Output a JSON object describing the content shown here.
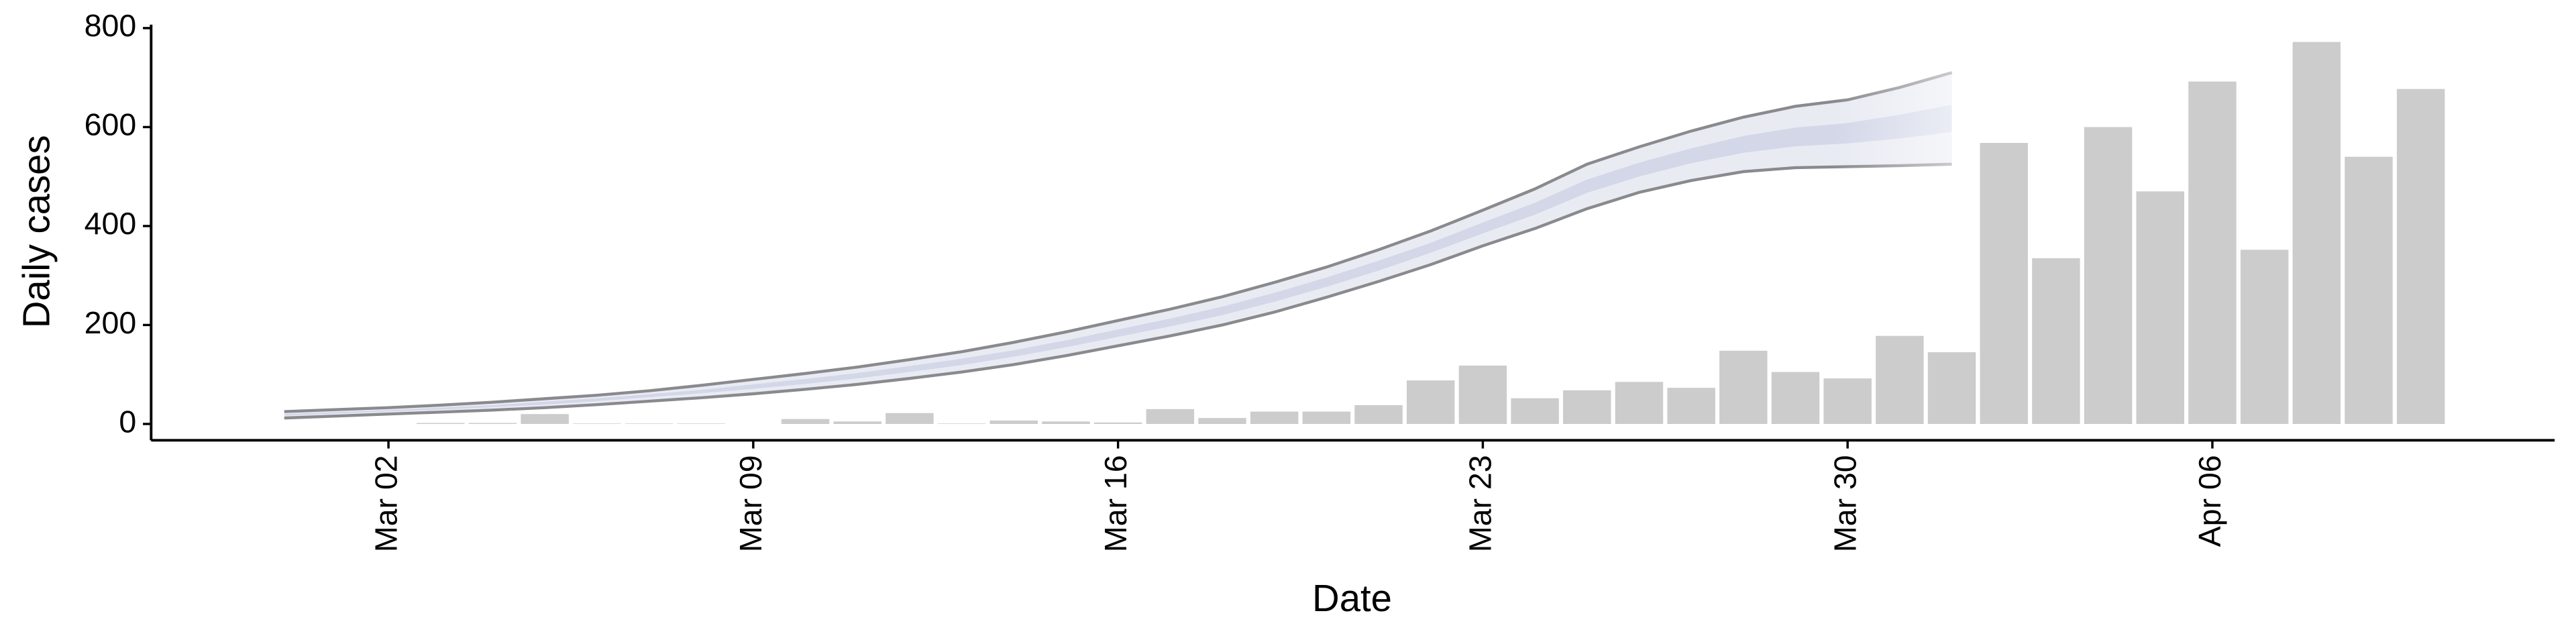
{
  "chart_data": {
    "type": "bar",
    "x_label": "Date",
    "y_label": "Daily cases",
    "categories": [
      null,
      null,
      null,
      "Mar 02",
      null,
      null,
      null,
      null,
      null,
      null,
      "Mar 09",
      null,
      null,
      null,
      null,
      null,
      null,
      "Mar 16",
      null,
      null,
      null,
      null,
      null,
      null,
      "Mar 23",
      null,
      null,
      null,
      null,
      null,
      null,
      "Mar 30",
      null,
      null,
      null,
      null,
      null,
      null,
      "Apr 06",
      null,
      null,
      null,
      null
    ],
    "values": [
      0,
      0,
      0,
      0,
      2,
      2,
      20,
      1,
      1,
      1,
      0,
      10,
      5,
      22,
      1,
      7,
      5,
      3,
      30,
      12,
      25,
      25,
      38,
      88,
      118,
      52,
      68,
      85,
      73,
      148,
      105,
      92,
      178,
      145,
      568,
      335,
      600,
      470,
      692,
      352,
      772,
      540,
      677
    ],
    "color": "#cccccc",
    "band": {
      "upper": [
        null,
        25,
        29,
        33,
        38,
        44,
        51,
        58,
        67,
        78,
        90,
        102,
        115,
        130,
        146,
        165,
        186,
        209,
        232,
        257,
        286,
        317,
        352,
        390,
        432,
        475,
        525,
        560,
        592,
        620,
        642,
        655,
        680,
        710,
        null,
        null,
        null,
        null,
        null,
        null,
        null,
        null,
        null
      ],
      "lower": [
        null,
        12,
        16,
        20,
        24,
        28,
        33,
        39,
        46,
        53,
        61,
        70,
        80,
        92,
        105,
        120,
        138,
        158,
        178,
        200,
        226,
        256,
        288,
        322,
        360,
        395,
        435,
        468,
        492,
        510,
        518,
        520,
        522,
        525,
        null,
        null,
        null,
        null,
        null,
        null,
        null,
        null,
        null
      ],
      "inner_upper": [
        null,
        20,
        24,
        28,
        33,
        38,
        45,
        52,
        60,
        69,
        80,
        91,
        103,
        117,
        132,
        149,
        169,
        191,
        213,
        237,
        265,
        296,
        330,
        366,
        407,
        447,
        494,
        528,
        557,
        582,
        599,
        608,
        625,
        645,
        null,
        null,
        null,
        null,
        null,
        null,
        null,
        null,
        null
      ],
      "inner_lower": [
        null,
        17,
        21,
        25,
        29,
        34,
        39,
        46,
        54,
        62,
        71,
        81,
        92,
        105,
        119,
        136,
        155,
        176,
        197,
        220,
        247,
        277,
        310,
        346,
        385,
        423,
        467,
        500,
        527,
        548,
        561,
        567,
        577,
        590,
        null,
        null,
        null,
        null,
        null,
        null,
        null,
        null,
        null
      ],
      "line_color": "#8a8a8e",
      "outer_color": "#e9ebf3",
      "inner_color": "#d3d7e8"
    },
    "ylim": [
      -33,
      807
    ],
    "yticks": [
      0,
      200,
      400,
      600,
      800
    ]
  }
}
